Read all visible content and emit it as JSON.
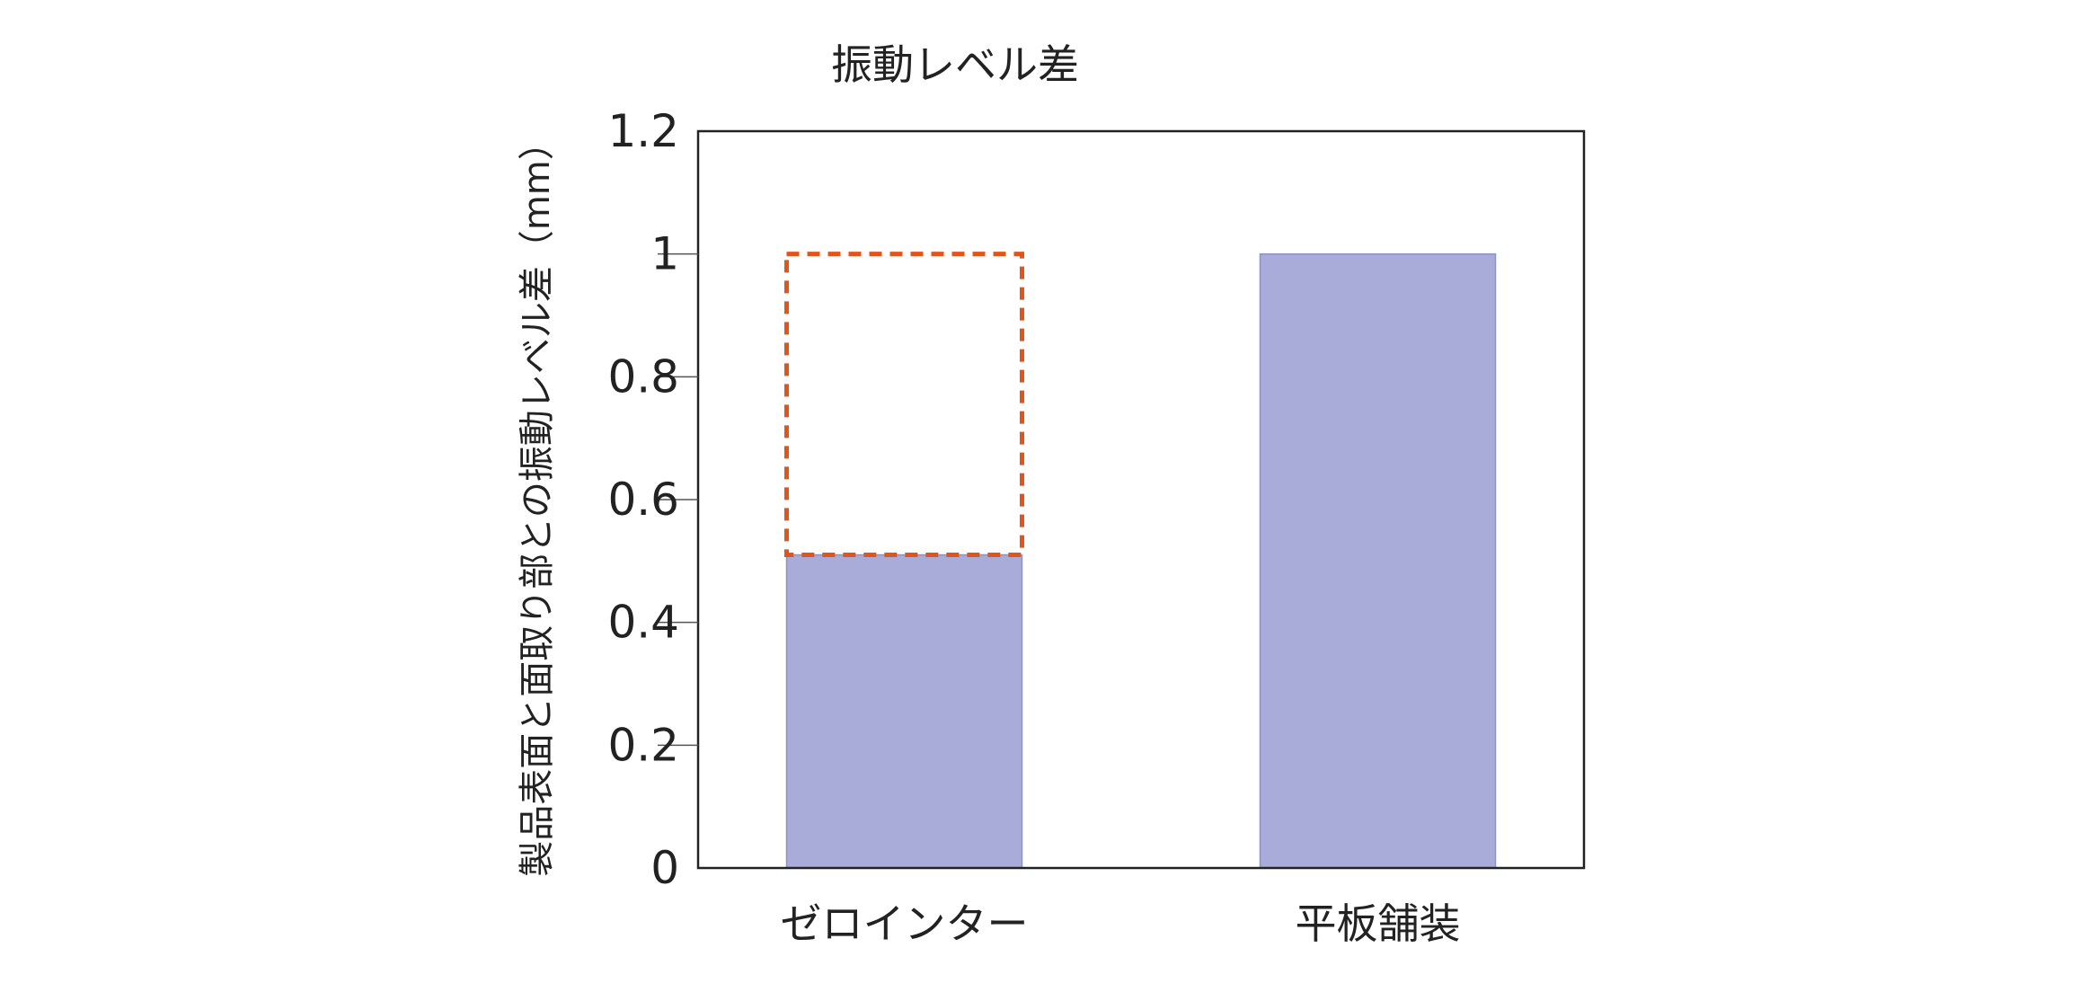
{
  "chart_data": {
    "type": "bar",
    "title": "振動レベル差",
    "ylabel": "製品表面と面取り部との振動レベル差（mm）",
    "xlabel": "",
    "categories": [
      "ゼロインター",
      "平板舗装"
    ],
    "values": [
      0.51,
      1.0
    ],
    "reference_outline": {
      "category": "ゼロインター",
      "from": 0.51,
      "to": 1.0,
      "style": "dashed",
      "color": "#e0551b"
    },
    "ylim": [
      0,
      1.2
    ],
    "yticks": [
      0,
      0.2,
      0.4,
      0.6,
      0.8,
      1,
      1.2
    ],
    "ytick_labels": [
      "0",
      "0.2",
      "0.4",
      "0.6",
      "0.8",
      "1",
      "1.2"
    ],
    "grid": false,
    "legend": "none",
    "colors": {
      "bar": "#a9abd8",
      "bar_edge": "#8f93c4",
      "axis": "#222222",
      "outline": "#e0551b"
    }
  }
}
